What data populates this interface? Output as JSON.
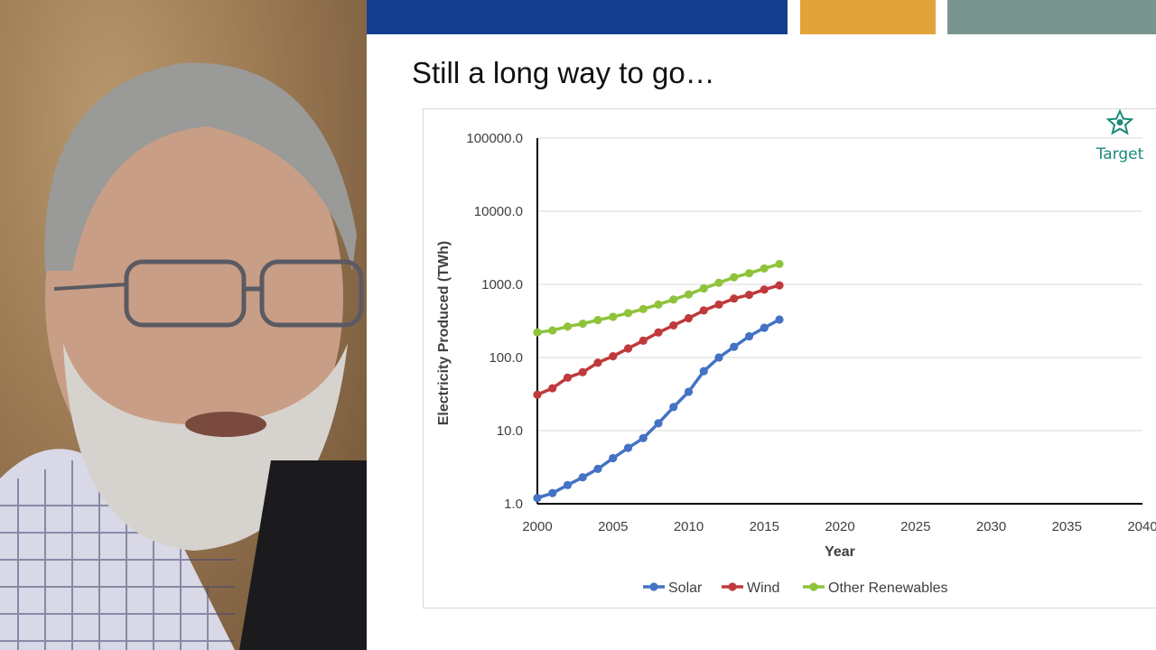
{
  "slide": {
    "title": "Still a long way to go…",
    "bar_colors": {
      "blue": "#133f8e",
      "orange": "#e1a337",
      "teal": "#7a958f"
    }
  },
  "target": {
    "label": "Target",
    "icon": "star-icon",
    "color": "#1a8a78"
  },
  "chart_data": {
    "type": "line",
    "title": "",
    "xlabel": "Year",
    "ylabel": "Electricity Produced (TWh)",
    "yscale": "log",
    "ylim": [
      1,
      100000
    ],
    "xlim": [
      2000,
      2040
    ],
    "x_ticks": [
      "2000",
      "2005",
      "2010",
      "2015",
      "2020",
      "2025",
      "2030",
      "2035",
      "2040"
    ],
    "y_ticks": [
      "1.0",
      "10.0",
      "100.0",
      "1000.0",
      "10000.0",
      "100000.0"
    ],
    "grid": true,
    "legend_position": "bottom",
    "x": [
      2000,
      2001,
      2002,
      2003,
      2004,
      2005,
      2006,
      2007,
      2008,
      2009,
      2010,
      2011,
      2012,
      2013,
      2014,
      2015,
      2016
    ],
    "series": [
      {
        "name": "Solar",
        "color": "#4472c4",
        "values": [
          1.2,
          1.4,
          1.8,
          2.3,
          3.0,
          4.2,
          5.8,
          7.9,
          12.6,
          21,
          34,
          65,
          100,
          140,
          195,
          255,
          330
        ]
      },
      {
        "name": "Wind",
        "color": "#c0393b",
        "values": [
          31,
          38,
          53,
          63,
          85,
          104,
          133,
          170,
          220,
          275,
          345,
          440,
          530,
          640,
          720,
          850,
          970
        ]
      },
      {
        "name": "Other Renewables",
        "color": "#8fc33b",
        "values": [
          220,
          235,
          265,
          290,
          325,
          360,
          405,
          460,
          530,
          620,
          730,
          880,
          1050,
          1250,
          1420,
          1650,
          1900
        ]
      }
    ]
  }
}
